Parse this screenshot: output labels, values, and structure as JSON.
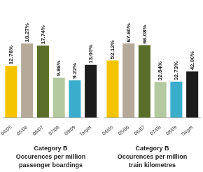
{
  "chart_data": [
    {
      "type": "bar",
      "title": "Category B\nOccurences per million\npassenger boardings",
      "categories": [
        "04/05",
        "05/06",
        "06/07",
        "07/08",
        "08/09",
        "Target"
      ],
      "values": [
        12.76,
        18.27,
        17.74,
        9.86,
        9.22,
        13.0
      ],
      "value_labels": [
        "12.76%",
        "18.27%",
        "17.74%",
        "9.86%",
        "9.22%",
        "13.00%"
      ],
      "colors": [
        "#f5c400",
        "#b5a99a",
        "#5a6e2a",
        "#b5c9a0",
        "#3aadcc",
        "#1c1c1c"
      ],
      "ylim": [
        0,
        28.3185
      ],
      "data_labels": true,
      "tick_labels": "x",
      "grid": false
    },
    {
      "type": "bar",
      "title": "Category B\nOccurences per million\ntrain kilometres",
      "categories": [
        "04/05",
        "05/06",
        "06/07",
        "07/08",
        "08/09",
        "Target"
      ],
      "values": [
        52.12,
        67.6,
        66.08,
        32.54,
        32.73,
        42.0
      ],
      "value_labels": [
        "52.12%",
        "67.60%",
        "66.08%",
        "32.54%",
        "32.73%",
        "42.00%"
      ],
      "colors": [
        "#f5c400",
        "#b5a99a",
        "#5a6e2a",
        "#b5c9a0",
        "#3aadcc",
        "#1c1c1c"
      ],
      "ylim": [
        0,
        104.78
      ],
      "data_labels": true,
      "tick_labels": "x",
      "grid": false
    }
  ]
}
